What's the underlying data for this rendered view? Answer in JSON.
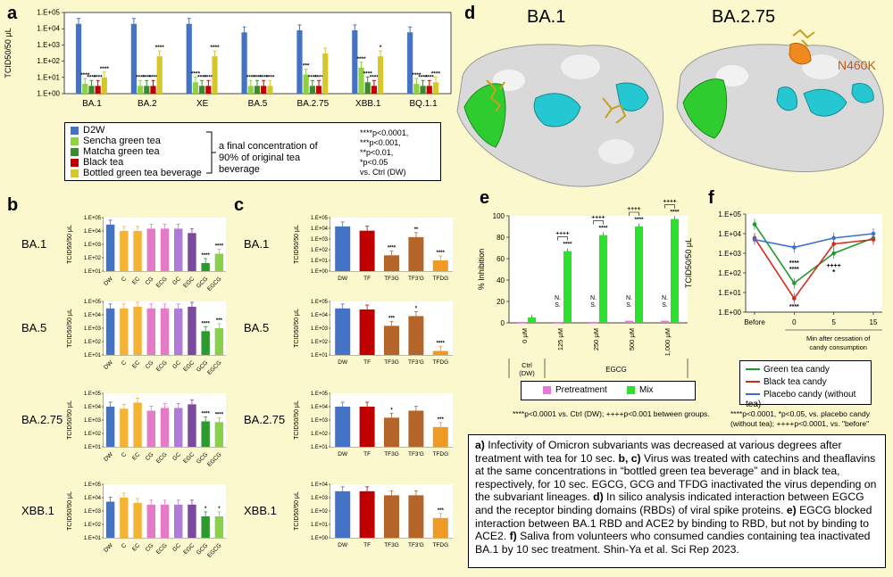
{
  "labels": {
    "a": "a",
    "b": "b",
    "c": "c",
    "d": "d",
    "e": "e",
    "f": "f"
  },
  "panel_a": {
    "ylabel": "TCID50/50 μL",
    "yticks": [
      "1.E+05",
      "1.E+04",
      "1.E+03",
      "1.E+02",
      "1.E+01",
      "1.E+00"
    ],
    "legend": [
      {
        "name": "D2W",
        "color": "#4472c4"
      },
      {
        "name": "Sencha green tea",
        "color": "#8fd13f"
      },
      {
        "name": "Matcha green tea",
        "color": "#3a8a2e"
      },
      {
        "name": "Black tea",
        "color": "#c00000"
      },
      {
        "name": "Bottled green tea beverage",
        "color": "#d6c82a"
      }
    ],
    "bracket_text": "a final concentration of 90% of original tea beverage",
    "stats": [
      "****p<0.0001,",
      "***p<0.001,",
      "**p<0.01,",
      "*p<0.05",
      "vs. Ctrl (DW)"
    ]
  },
  "chart_data": [
    {
      "id": "a",
      "type": "bar",
      "scale": "log",
      "ylim": [
        1,
        100000
      ],
      "categories": [
        "BA.1",
        "BA.2",
        "XE",
        "BA.5",
        "BA.2.75",
        "XBB.1",
        "BQ.1.1"
      ],
      "series": [
        {
          "name": "D2W",
          "values": [
            20000,
            20000,
            20000,
            6000,
            8000,
            8000,
            6000
          ]
        },
        {
          "name": "Sencha green tea",
          "values": [
            4,
            3,
            5,
            3,
            15,
            40,
            4
          ]
        },
        {
          "name": "Matcha green tea",
          "values": [
            3,
            3,
            3,
            3,
            3,
            5,
            3
          ]
        },
        {
          "name": "Black tea",
          "values": [
            3,
            3,
            3,
            3,
            3,
            3,
            3
          ]
        },
        {
          "name": "Bottled green tea beverage",
          "values": [
            10,
            200,
            200,
            3,
            300,
            200,
            5
          ]
        }
      ],
      "sig": [
        [
          "****",
          "****",
          "****",
          "****"
        ],
        [
          "****",
          "****",
          "****",
          "****"
        ],
        [
          "****",
          "****",
          "****",
          "****"
        ],
        [
          "****",
          "****",
          "****",
          "****"
        ],
        [
          "***",
          "****",
          "****",
          ""
        ],
        [
          "****",
          "****",
          "****",
          "*"
        ],
        [
          "****",
          "****",
          "****",
          "****"
        ]
      ]
    },
    {
      "id": "b-BA.1",
      "type": "bar",
      "scale": "log",
      "ylim": [
        10,
        100000
      ],
      "categories": [
        "DW",
        "C",
        "EC",
        "CG",
        "ECG",
        "GC",
        "EGC",
        "GCG",
        "EGCG"
      ],
      "values": [
        30000,
        10000,
        10000,
        15000,
        15000,
        15000,
        7000,
        40,
        200
      ],
      "sig": [
        "",
        "",
        "",
        "",
        "",
        "",
        "",
        "****",
        "****"
      ]
    },
    {
      "id": "b-BA.5",
      "type": "bar",
      "scale": "log",
      "ylim": [
        10,
        100000
      ],
      "categories": [
        "DW",
        "C",
        "EC",
        "CG",
        "ECG",
        "GC",
        "EGC",
        "GCG",
        "EGCG"
      ],
      "values": [
        30000,
        30000,
        40000,
        30000,
        30000,
        30000,
        40000,
        600,
        1000
      ],
      "sig": [
        "",
        "",
        "",
        "",
        "",
        "",
        "",
        "****",
        "***"
      ]
    },
    {
      "id": "b-BA.2.75",
      "type": "bar",
      "scale": "log",
      "ylim": [
        10,
        100000
      ],
      "categories": [
        "DW",
        "C",
        "EC",
        "CG",
        "ECG",
        "GC",
        "EGC",
        "GCG",
        "EGCG"
      ],
      "values": [
        10000,
        7000,
        20000,
        5000,
        8000,
        8000,
        15000,
        800,
        700
      ],
      "sig": [
        "",
        "",
        "",
        "",
        "",
        "",
        "",
        "****",
        "****"
      ]
    },
    {
      "id": "b-XBB.1",
      "type": "bar",
      "scale": "log",
      "ylim": [
        10,
        100000
      ],
      "categories": [
        "DW",
        "C",
        "EC",
        "CG",
        "ECG",
        "GC",
        "EGC",
        "GCG",
        "EGCG"
      ],
      "values": [
        5000,
        10000,
        4000,
        3000,
        3000,
        3000,
        3000,
        400,
        400
      ],
      "sig": [
        "",
        "",
        "",
        "",
        "",
        "",
        "",
        "*",
        "*"
      ]
    },
    {
      "id": "c-BA.1",
      "type": "bar",
      "scale": "log",
      "ylim": [
        1,
        100000
      ],
      "categories": [
        "DW",
        "TF",
        "TF3G",
        "TF3'G",
        "TFDG"
      ],
      "values": [
        15000,
        6000,
        30,
        1500,
        10
      ],
      "sig": [
        "",
        "",
        "****",
        "**",
        "****"
      ]
    },
    {
      "id": "c-BA.5",
      "type": "bar",
      "scale": "log",
      "ylim": [
        10,
        100000
      ],
      "categories": [
        "DW",
        "TF",
        "TF3G",
        "TF3'G",
        "TFDG"
      ],
      "values": [
        30000,
        25000,
        1500,
        8000,
        20
      ],
      "sig": [
        "",
        "",
        "***",
        "*",
        "****"
      ]
    },
    {
      "id": "c-BA.2.75",
      "type": "bar",
      "scale": "log",
      "ylim": [
        10,
        100000
      ],
      "categories": [
        "DW",
        "TF",
        "TF3G",
        "TF3'G",
        "TFDG"
      ],
      "values": [
        10000,
        10000,
        1500,
        5000,
        300
      ],
      "sig": [
        "",
        "",
        "*",
        "",
        "***"
      ]
    },
    {
      "id": "c-XBB.1",
      "type": "bar",
      "scale": "log",
      "ylim": [
        1,
        10000
      ],
      "categories": [
        "DW",
        "TF",
        "TF3G",
        "TF3'G",
        "TFDG"
      ],
      "values": [
        3000,
        3000,
        1500,
        1500,
        30
      ],
      "sig": [
        "",
        "",
        "",
        "",
        "***"
      ]
    },
    {
      "id": "e",
      "type": "bar",
      "ylabel": "% Inhibition",
      "ylim": [
        0,
        100
      ],
      "categories": [
        "0 μM",
        "125 μM",
        "250 μM",
        "500 μM",
        "1,000 μM"
      ],
      "series": [
        {
          "name": "Pretreatment",
          "values": [
            0,
            0,
            0,
            2,
            2
          ]
        },
        {
          "name": "Mix",
          "values": [
            5,
            67,
            82,
            90,
            97
          ]
        }
      ]
    },
    {
      "id": "f",
      "type": "line",
      "ylabel": "TCID50/50 μL",
      "scale": "log",
      "ylim": [
        1,
        100000
      ],
      "x": [
        "Before",
        "0",
        "5",
        "15"
      ],
      "series": [
        {
          "name": "Green tea candy",
          "values": [
            30000,
            30,
            1000,
            6000
          ]
        },
        {
          "name": "Black tea candy",
          "values": [
            6000,
            5,
            3000,
            5000
          ]
        },
        {
          "name": "Placebo candy (without tea)",
          "values": [
            5000,
            2000,
            6000,
            10000
          ]
        }
      ]
    }
  ],
  "panel_b": {
    "ylabel": "TCID50/50 μL",
    "viruses": [
      "BA.1",
      "BA.5",
      "BA.2.75",
      "XBB.1"
    ],
    "colors": [
      "#4472c4",
      "#f5b335",
      "#f5b335",
      "#e57bc6",
      "#e57bc6",
      "#b07ad9",
      "#7a4b9a",
      "#2e9a2e",
      "#8ad14a"
    ]
  },
  "panel_c": {
    "ylabel": "TCID50/50 μL",
    "viruses": [
      "BA.1",
      "BA.5",
      "BA.2.75",
      "XBB.1"
    ],
    "colors": [
      "#4472c4",
      "#c00000",
      "#b5652a",
      "#b5652a",
      "#f09a26"
    ]
  },
  "panel_d": {
    "title_left": "BA.1",
    "title_right": "BA.2.75",
    "mutation": "N460K"
  },
  "panel_e": {
    "legend": [
      {
        "name": "Pretreatment",
        "color": "#e57bd6"
      },
      {
        "name": "Mix",
        "color": "#2ee02e"
      }
    ],
    "group_ctrl": "Ctrl (DW)",
    "group_egcg": "EGCG",
    "ns": "N. S.",
    "footnote": "****p<0.0001 vs. Ctrl (DW); ++++p<0.001 between groups.",
    "plus": "++++",
    "stars": "****"
  },
  "panel_f": {
    "xlabel": "Min after cessation of candy consumption",
    "footnote": "****p<0.0001, *p<0.05, vs. placebo candy (without tea); ++++p<0.0001, vs. \"before\"",
    "colors": [
      "#1f9a2e",
      "#d42a1e",
      "#3a6fd0"
    ]
  },
  "caption_parts": [
    {
      "b": "a)",
      " t": ""
    },
    {
      "t": " Infectivity of Omicron subvariants was decreased at various degrees after treatment with tea for 10 sec. "
    },
    {
      "b": "b, c)"
    },
    {
      "t": " Virus was treated with catechins and theaflavins at the same concentrations in “bottled green tea beverage” and in black tea, respectively, for 10 sec. EGCG, GCG and TFDG inactivated the virus depending on the subvariant lineages. "
    },
    {
      "b": "d)"
    },
    {
      "t": " In silico analysis indicated interaction between EGCG and the receptor binding domains (RBDs) of viral spike proteins. "
    },
    {
      "b": "e)"
    },
    {
      "t": " EGCG blocked interaction between BA.1 RBD and ACE2 by binding to RBD, but not by binding to ACE2. "
    },
    {
      "b": "f)"
    },
    {
      "t": " Saliva from volunteers who consumed candies containing tea inactivated BA.1 by 10 sec treatment. Shin-Ya et al. Sci Rep 2023."
    }
  ]
}
